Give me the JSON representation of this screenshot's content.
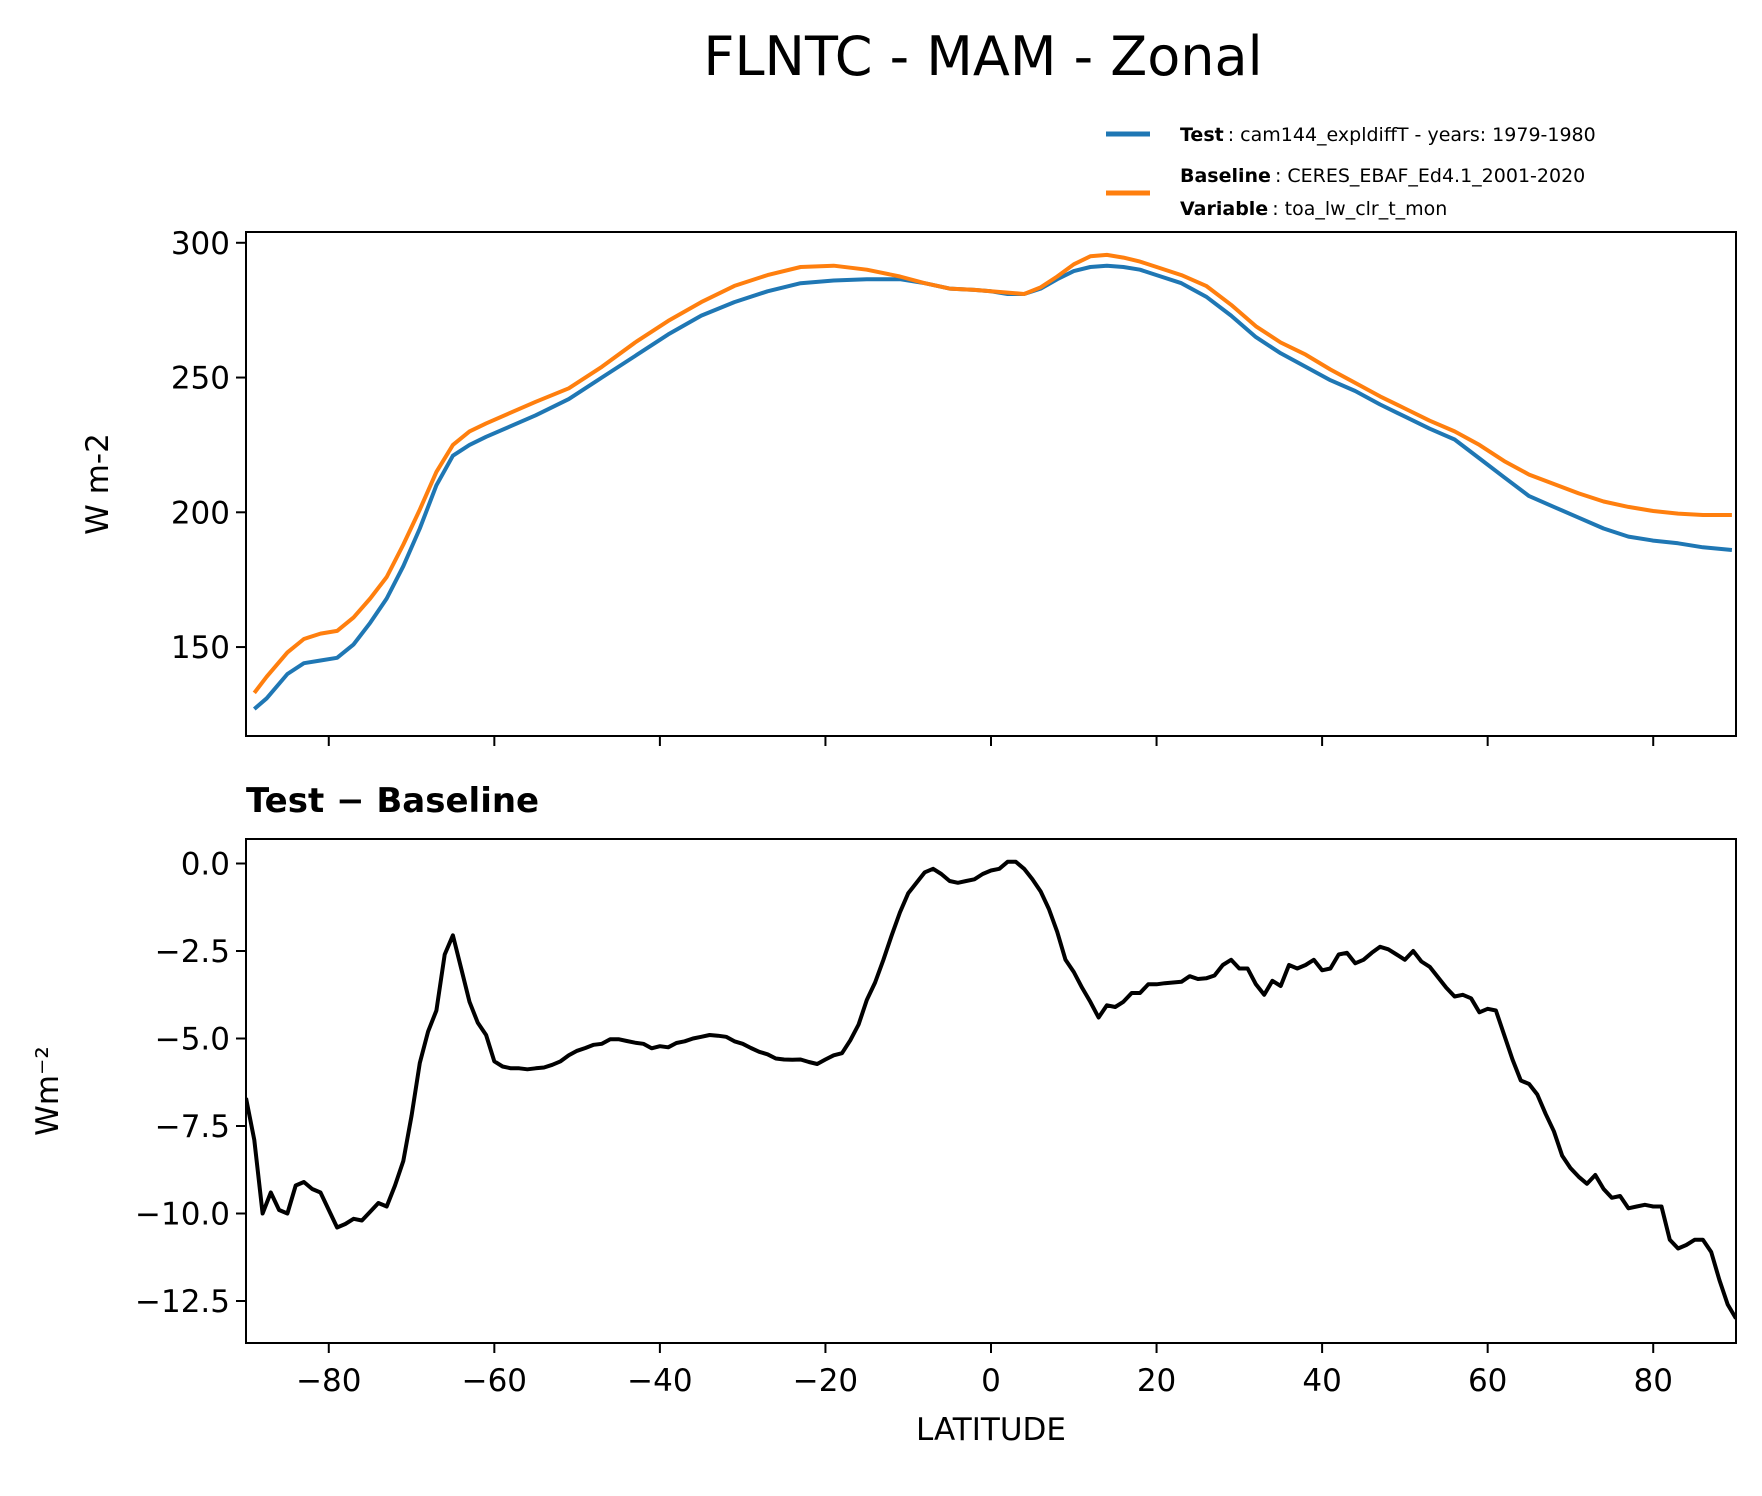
{
  "chart_data": [
    {
      "type": "line",
      "title": "FLNTC - MAM - Zonal",
      "xlabel": "",
      "ylabel": "W m-2",
      "xlim": [
        -90,
        90
      ],
      "ylim": [
        117,
        304
      ],
      "yticks": [
        150,
        200,
        250,
        300
      ],
      "xticks": [
        -80,
        -60,
        -40,
        -20,
        0,
        20,
        40,
        60,
        80
      ],
      "grid": false,
      "legend_position": "top-right (above plot)",
      "legend": [
        {
          "bold": "Test",
          "text": "cam144_expldiffT - years: 1979-1980",
          "color": "#1f77b4"
        },
        {
          "bold": "Baseline",
          "text": "CERES_EBAF_Ed4.1_2001-2020",
          "bold2": "Variable",
          "text2": "toa_lw_clr_t_mon",
          "color": "#ff7f0e"
        }
      ],
      "x": [
        -89,
        -87.5,
        -85,
        -83,
        -81,
        -79,
        -77,
        -75,
        -73,
        -71,
        -69,
        -67,
        -65,
        -63,
        -61,
        -58,
        -55,
        -51,
        -47,
        -43,
        -39,
        -35,
        -31,
        -27,
        -23,
        -19,
        -15,
        -11,
        -8,
        -5,
        -2,
        0,
        2,
        4,
        6,
        8,
        10,
        12,
        14,
        16,
        18,
        20,
        23,
        26,
        29,
        32,
        35,
        38,
        41,
        44,
        47,
        50,
        53,
        56,
        59,
        62,
        65,
        68,
        71,
        74,
        77,
        80,
        83,
        86,
        89.5
      ],
      "series": [
        {
          "name": "Test",
          "color": "#1f77b4",
          "values": [
            127,
            131,
            140,
            144,
            145,
            146,
            151,
            159,
            168,
            180,
            194,
            210,
            221,
            225,
            228,
            232,
            236,
            242,
            250,
            258,
            266,
            273,
            278,
            282,
            285,
            286,
            286.5,
            286.5,
            285,
            283,
            282.5,
            282,
            281,
            281,
            283,
            286.5,
            289.5,
            291,
            291.5,
            291,
            290,
            288,
            285,
            280,
            273,
            265,
            259,
            254,
            249,
            245,
            240,
            235.5,
            231,
            227,
            220,
            213,
            206,
            202,
            198,
            194,
            191,
            189.5,
            188.5,
            187,
            186
          ]
        },
        {
          "name": "Baseline",
          "color": "#ff7f0e",
          "values": [
            133,
            139,
            148,
            153,
            155,
            156,
            161,
            168,
            176,
            188,
            201,
            215,
            225,
            230,
            233,
            237,
            241,
            246,
            254,
            263,
            271,
            278,
            284,
            288,
            291,
            291.5,
            290,
            287.5,
            285,
            283,
            282.5,
            282,
            281.5,
            281,
            283.5,
            287.5,
            292,
            295,
            295.5,
            294.5,
            293,
            291,
            288,
            284,
            277,
            269,
            263,
            258.5,
            253,
            248,
            243,
            238.5,
            234,
            230,
            225,
            219,
            214,
            210.5,
            207,
            204,
            202,
            200.5,
            199.5,
            199,
            199
          ]
        }
      ]
    },
    {
      "type": "line",
      "title": "Test − Baseline",
      "xlabel": "LATITUDE",
      "ylabel": "Wm⁻²",
      "xlim": [
        -90,
        90
      ],
      "ylim": [
        -13.7,
        0.7
      ],
      "yticks": [
        0.0,
        -2.5,
        -5.0,
        -7.5,
        -10.0,
        -12.5
      ],
      "ytick_labels": [
        "0.0",
        "−2.5",
        "−5.0",
        "−7.5",
        "−10.0",
        "−12.5"
      ],
      "xticks": [
        -80,
        -60,
        -40,
        -20,
        0,
        20,
        40,
        60,
        80
      ],
      "xtick_labels": [
        "−80",
        "−60",
        "−40",
        "−20",
        "0",
        "20",
        "40",
        "60",
        "80"
      ],
      "grid": false,
      "series": [
        {
          "name": "",
          "color": "#000000",
          "x": [
            -90,
            -89,
            -88,
            -87,
            -86,
            -85,
            -84,
            -83,
            -82,
            -81,
            -80,
            -79,
            -78,
            -77,
            -76,
            -75,
            -74,
            -73,
            -72,
            -71,
            -70,
            -69,
            -68,
            -67,
            -66,
            -65,
            -64,
            -63,
            -62,
            -61,
            -60,
            -59,
            -58,
            -57,
            -56,
            -55,
            -54,
            -53,
            -52,
            -51,
            -50,
            -49,
            -48,
            -47,
            -46,
            -45,
            -44,
            -43,
            -42,
            -41,
            -40,
            -39,
            -38,
            -37,
            -36,
            -35,
            -34,
            -33,
            -32,
            -31,
            -30,
            -29,
            -28,
            -27,
            -26,
            -25,
            -24,
            -23,
            -22,
            -21,
            -20,
            -19,
            -18,
            -17,
            -16,
            -15,
            -14,
            -13,
            -12,
            -11,
            -10,
            -9,
            -8,
            -7,
            -6,
            -5,
            -4,
            -3,
            -2,
            -1,
            0,
            1,
            2,
            3,
            4,
            5,
            6,
            7,
            8,
            9,
            10,
            11,
            12,
            13,
            14,
            15,
            16,
            17,
            18,
            19,
            20,
            21,
            22,
            23,
            24,
            25,
            26,
            27,
            28,
            29,
            30,
            31,
            32,
            33,
            34,
            35,
            36,
            37,
            38,
            39,
            40,
            41,
            42,
            43,
            44,
            45,
            46,
            47,
            48,
            49,
            50,
            51,
            52,
            53,
            54,
            55,
            56,
            57,
            58,
            59,
            60,
            61,
            62,
            63,
            64,
            65,
            66,
            67,
            68,
            69,
            70,
            71,
            72,
            73,
            74,
            75,
            76,
            77,
            78,
            79,
            80,
            81,
            82,
            83,
            84,
            85,
            86,
            87,
            88,
            89,
            90
          ],
          "values": [
            -6.7,
            -7.9,
            -10.0,
            -9.4,
            -9.9,
            -10.0,
            -9.2,
            -9.1,
            -9.3,
            -9.4,
            -9.9,
            -10.4,
            -10.3,
            -10.15,
            -10.2,
            -9.95,
            -9.7,
            -9.8,
            -9.2,
            -8.5,
            -7.2,
            -5.7,
            -4.8,
            -4.2,
            -2.6,
            -2.05,
            -3.0,
            -3.95,
            -4.55,
            -4.9,
            -5.65,
            -5.8,
            -5.85,
            -5.85,
            -5.88,
            -5.85,
            -5.83,
            -5.75,
            -5.65,
            -5.48,
            -5.35,
            -5.27,
            -5.18,
            -5.15,
            -5.02,
            -5.02,
            -5.07,
            -5.12,
            -5.15,
            -5.28,
            -5.22,
            -5.25,
            -5.13,
            -5.08,
            -5.0,
            -4.95,
            -4.9,
            -4.92,
            -4.95,
            -5.08,
            -5.15,
            -5.27,
            -5.38,
            -5.45,
            -5.57,
            -5.6,
            -5.61,
            -5.6,
            -5.67,
            -5.73,
            -5.6,
            -5.48,
            -5.42,
            -5.05,
            -4.6,
            -3.9,
            -3.4,
            -2.75,
            -2.05,
            -1.4,
            -0.85,
            -0.55,
            -0.25,
            -0.15,
            -0.3,
            -0.5,
            -0.55,
            -0.5,
            -0.45,
            -0.3,
            -0.2,
            -0.15,
            0.05,
            0.05,
            -0.15,
            -0.45,
            -0.8,
            -1.3,
            -1.95,
            -2.75,
            -3.1,
            -3.55,
            -3.95,
            -4.4,
            -4.05,
            -4.1,
            -3.95,
            -3.7,
            -3.7,
            -3.45,
            -3.45,
            -3.42,
            -3.4,
            -3.38,
            -3.22,
            -3.3,
            -3.28,
            -3.2,
            -2.9,
            -2.75,
            -3.0,
            -3.0,
            -3.45,
            -3.75,
            -3.35,
            -3.5,
            -2.9,
            -3.0,
            -2.9,
            -2.75,
            -3.05,
            -3.0,
            -2.6,
            -2.55,
            -2.85,
            -2.75,
            -2.55,
            -2.38,
            -2.45,
            -2.6,
            -2.75,
            -2.5,
            -2.8,
            -2.95,
            -3.25,
            -3.55,
            -3.8,
            -3.75,
            -3.85,
            -4.25,
            -4.15,
            -4.2,
            -4.9,
            -5.6,
            -6.2,
            -6.3,
            -6.6,
            -7.15,
            -7.65,
            -8.35,
            -8.7,
            -8.95,
            -9.15,
            -8.9,
            -9.3,
            -9.55,
            -9.5,
            -9.85,
            -9.8,
            -9.75,
            -9.8,
            -9.8,
            -10.75,
            -11.0,
            -10.9,
            -10.75,
            -10.75,
            -11.1,
            -11.9,
            -12.6,
            -13.0
          ]
        }
      ]
    }
  ]
}
